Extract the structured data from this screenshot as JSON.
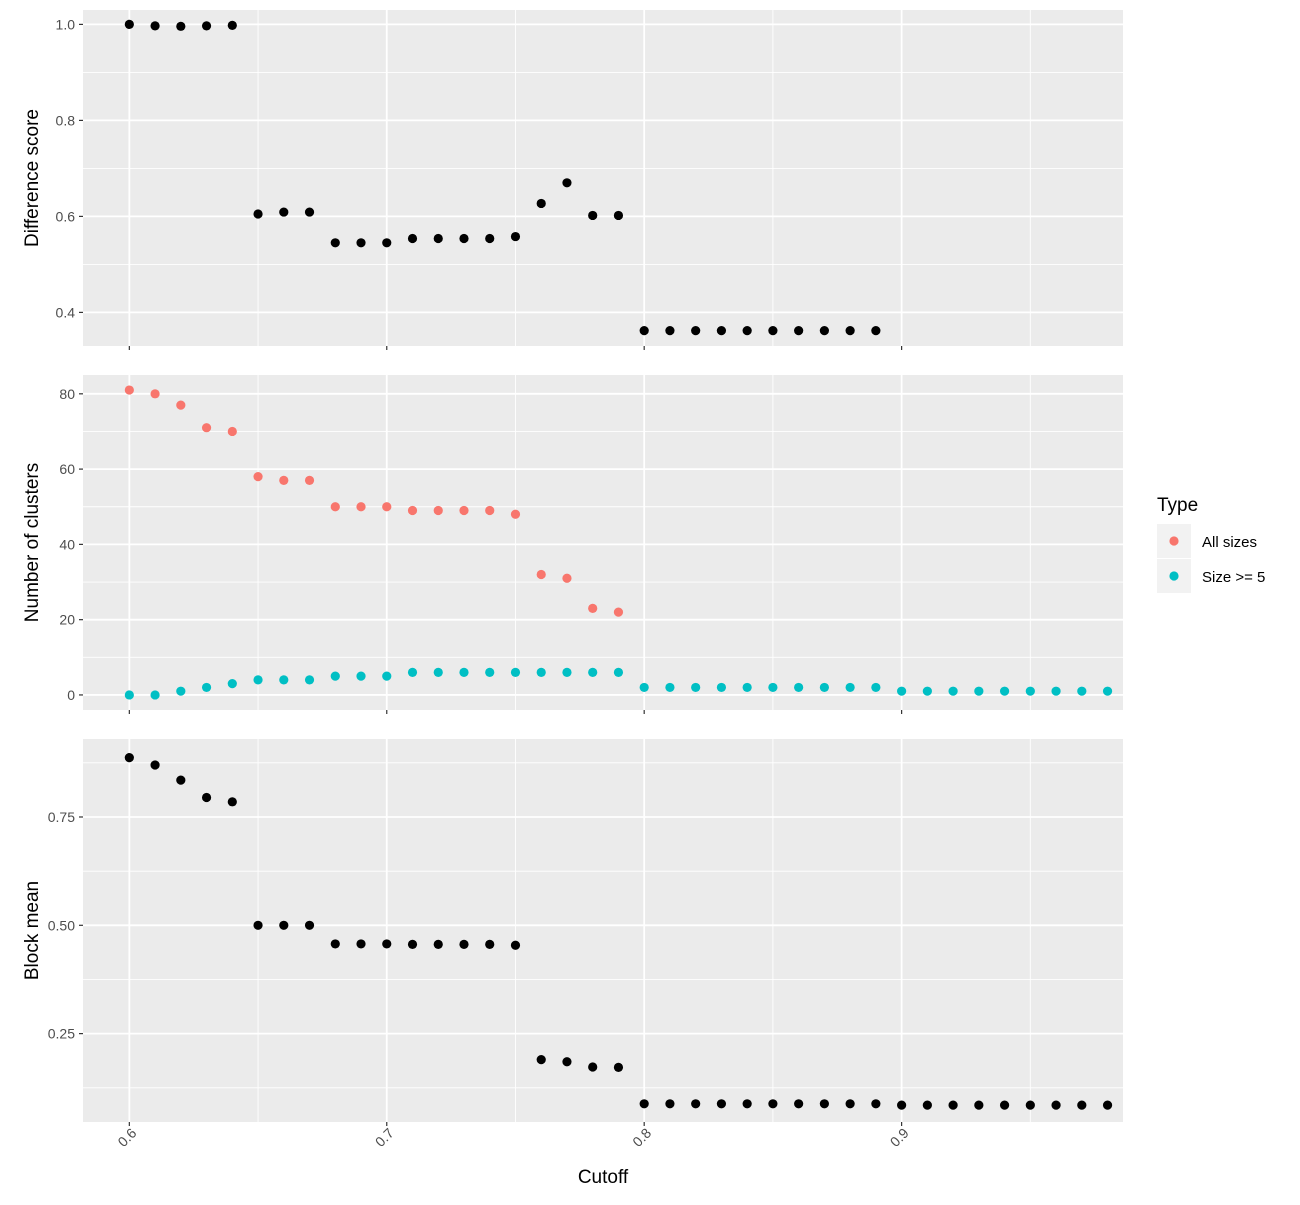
{
  "chart_data": {
    "type": "scatter",
    "xlabel": "Cutoff",
    "xlim": [
      0.582,
      0.986
    ],
    "xticks": [
      0.6,
      0.7,
      0.8,
      0.9
    ],
    "xtick_labels": [
      "0.6",
      "0.7",
      "0.8",
      "0.9"
    ],
    "grid": true,
    "legend": {
      "title": "Type",
      "position": "right",
      "entries": [
        {
          "label": "All sizes",
          "color": "#F8766D"
        },
        {
          "label": "Size >= 5",
          "color": "#00BFC4"
        }
      ]
    },
    "panels": [
      {
        "ylabel": "Difference score",
        "ylim": [
          0.33,
          1.03
        ],
        "yticks": [
          0.4,
          0.6,
          0.8,
          1.0
        ],
        "ytick_labels": [
          "0.4",
          "0.6",
          "0.8",
          "1.0"
        ],
        "series": [
          {
            "color": "#000000",
            "x": [
              0.6,
              0.61,
              0.62,
              0.63,
              0.64,
              0.65,
              0.66,
              0.67,
              0.68,
              0.69,
              0.7,
              0.71,
              0.72,
              0.73,
              0.74,
              0.75,
              0.76,
              0.77,
              0.78,
              0.79,
              0.8,
              0.81,
              0.82,
              0.83,
              0.84,
              0.85,
              0.86,
              0.87,
              0.88,
              0.89
            ],
            "y": [
              1.0,
              0.997,
              0.996,
              0.997,
              0.998,
              0.605,
              0.609,
              0.609,
              0.545,
              0.545,
              0.545,
              0.554,
              0.554,
              0.554,
              0.554,
              0.558,
              0.627,
              0.67,
              0.602,
              0.602,
              0.362,
              0.362,
              0.362,
              0.362,
              0.362,
              0.362,
              0.362,
              0.362,
              0.362,
              0.362
            ]
          }
        ]
      },
      {
        "ylabel": "Number of clusters",
        "ylim": [
          -4,
          85
        ],
        "yticks": [
          0,
          20,
          40,
          60,
          80
        ],
        "ytick_labels": [
          "0",
          "20",
          "40",
          "60",
          "80"
        ],
        "series": [
          {
            "name": "All sizes",
            "color": "#F8766D",
            "x": [
              0.6,
              0.61,
              0.62,
              0.63,
              0.64,
              0.65,
              0.66,
              0.67,
              0.68,
              0.69,
              0.7,
              0.71,
              0.72,
              0.73,
              0.74,
              0.75,
              0.76,
              0.77,
              0.78,
              0.79
            ],
            "y": [
              81,
              80,
              77,
              71,
              70,
              58,
              57,
              57,
              50,
              50,
              50,
              49,
              49,
              49,
              49,
              48,
              32,
              31,
              23,
              22
            ]
          },
          {
            "name": "Size >= 5",
            "color": "#00BFC4",
            "x": [
              0.6,
              0.61,
              0.62,
              0.63,
              0.64,
              0.65,
              0.66,
              0.67,
              0.68,
              0.69,
              0.7,
              0.71,
              0.72,
              0.73,
              0.74,
              0.75,
              0.76,
              0.77,
              0.78,
              0.79,
              0.8,
              0.81,
              0.82,
              0.83,
              0.84,
              0.85,
              0.86,
              0.87,
              0.88,
              0.89,
              0.9,
              0.91,
              0.92,
              0.93,
              0.94,
              0.95,
              0.96,
              0.97,
              0.98
            ],
            "y": [
              0,
              0,
              1,
              2,
              3,
              4,
              4,
              4,
              5,
              5,
              5,
              6,
              6,
              6,
              6,
              6,
              6,
              6,
              6,
              6,
              2,
              2,
              2,
              2,
              2,
              2,
              2,
              2,
              2,
              2,
              1,
              1,
              1,
              1,
              1,
              1,
              1,
              1,
              1
            ]
          }
        ]
      },
      {
        "ylabel": "Block mean",
        "ylim": [
          0.046,
          0.93
        ],
        "yticks": [
          0.25,
          0.5,
          0.75
        ],
        "ytick_labels": [
          "0.25",
          "0.50",
          "0.75"
        ],
        "series": [
          {
            "color": "#000000",
            "x": [
              0.6,
              0.61,
              0.62,
              0.63,
              0.64,
              0.65,
              0.66,
              0.67,
              0.68,
              0.69,
              0.7,
              0.71,
              0.72,
              0.73,
              0.74,
              0.75,
              0.76,
              0.77,
              0.78,
              0.79,
              0.8,
              0.81,
              0.82,
              0.83,
              0.84,
              0.85,
              0.86,
              0.87,
              0.88,
              0.89,
              0.9,
              0.91,
              0.92,
              0.93,
              0.94,
              0.95,
              0.96,
              0.97,
              0.98
            ],
            "y": [
              0.887,
              0.87,
              0.835,
              0.795,
              0.785,
              0.5,
              0.5,
              0.5,
              0.457,
              0.457,
              0.457,
              0.456,
              0.456,
              0.456,
              0.456,
              0.454,
              0.19,
              0.185,
              0.173,
              0.172,
              0.088,
              0.088,
              0.088,
              0.088,
              0.088,
              0.088,
              0.088,
              0.088,
              0.088,
              0.088,
              0.085,
              0.085,
              0.085,
              0.085,
              0.085,
              0.085,
              0.085,
              0.085,
              0.085
            ]
          }
        ]
      }
    ]
  }
}
